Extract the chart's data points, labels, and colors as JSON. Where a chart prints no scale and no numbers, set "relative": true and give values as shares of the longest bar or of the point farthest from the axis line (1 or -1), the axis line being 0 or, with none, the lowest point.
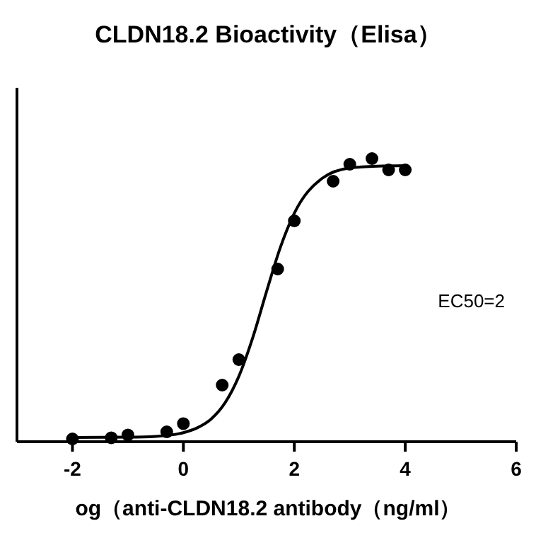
{
  "chart_data": {
    "type": "scatter",
    "title": "CLDN18.2 Bioactivity（Elisa）",
    "xlabel": "og（anti-CLDN18.2 antibody（ng/ml）",
    "annotations": [
      "EC50=2"
    ],
    "relative": true,
    "xlim": [
      -3,
      6
    ],
    "xticks": [
      -2,
      0,
      2,
      4,
      6
    ],
    "grid": false,
    "legend": false,
    "series": [
      {
        "color": "#000000",
        "marker": "circle",
        "x": [
          -2,
          -1.3,
          -1,
          -0.3,
          0,
          0.7,
          1,
          1.7,
          2,
          2.7,
          3,
          3.4,
          3.7,
          4
        ],
        "values": [
          0.01,
          0.014,
          0.024,
          0.035,
          0.064,
          0.2,
          0.29,
          0.61,
          0.78,
          0.92,
          0.98,
          1,
          0.96,
          0.96
        ]
      },
      {
        "type": "line",
        "color": "#000000",
        "marker": "none",
        "line_style": "solid",
        "x": [
          -2,
          -1,
          -0.5,
          0,
          0.25,
          0.5,
          0.75,
          1,
          1.25,
          1.5,
          1.75,
          2,
          2.5,
          3,
          3.5,
          4
        ],
        "values": [
          0.015,
          0.016,
          0.019,
          0.032,
          0.049,
          0.08,
          0.137,
          0.231,
          0.367,
          0.531,
          0.687,
          0.807,
          0.93,
          0.967,
          0.973,
          0.975
        ]
      }
    ]
  }
}
